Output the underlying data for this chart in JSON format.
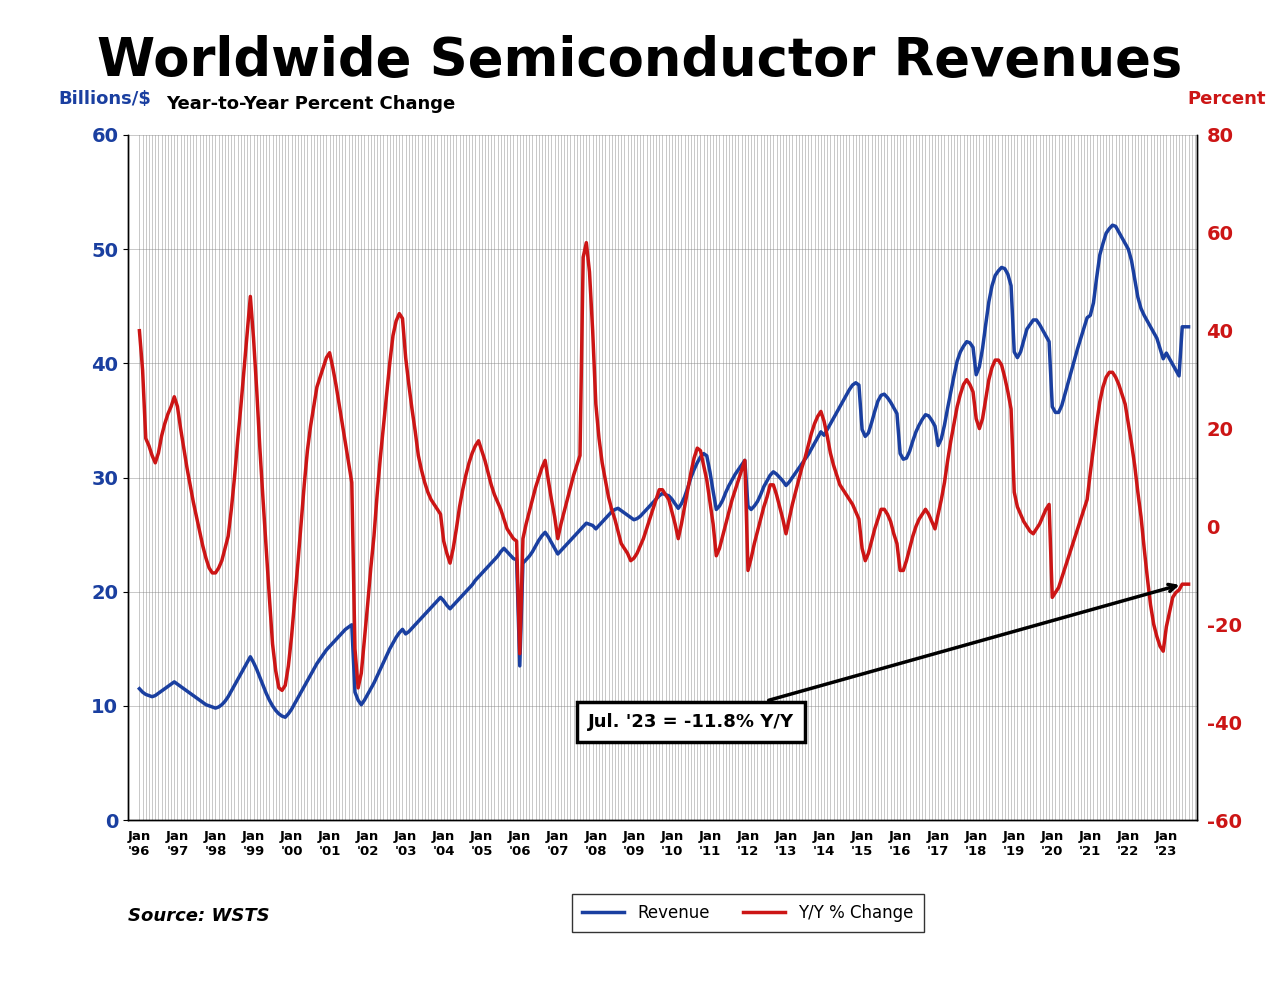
{
  "title": "Worldwide Semiconductor Revenues",
  "subtitle": "Year-to-Year Percent Change",
  "left_label": "Billions/$",
  "right_label": "Percent",
  "source": "Source: WSTS",
  "annotation": "Jul. '23 = -11.8% Y/Y",
  "blue_color": "#1A3FA0",
  "red_color": "#CC1515",
  "left_ylim": [
    0,
    60
  ],
  "right_ylim": [
    -60,
    80
  ],
  "left_yticks": [
    0,
    10,
    20,
    30,
    40,
    50,
    60
  ],
  "right_yticks": [
    -60,
    -40,
    -20,
    0,
    20,
    40,
    60,
    80
  ],
  "start_year": 1996,
  "n_years": 28,
  "title_fontsize": 38,
  "subtitle_fontsize": 13,
  "revenue": [
    11.5,
    11.2,
    11.0,
    10.9,
    10.8,
    10.9,
    11.1,
    11.3,
    11.5,
    11.7,
    11.9,
    12.1,
    11.9,
    11.7,
    11.5,
    11.3,
    11.1,
    10.9,
    10.7,
    10.5,
    10.3,
    10.1,
    10.0,
    9.9,
    9.8,
    9.9,
    10.1,
    10.4,
    10.8,
    11.3,
    11.8,
    12.3,
    12.8,
    13.3,
    13.8,
    14.3,
    13.8,
    13.2,
    12.5,
    11.8,
    11.1,
    10.5,
    10.0,
    9.6,
    9.3,
    9.1,
    9.0,
    9.3,
    9.7,
    10.2,
    10.7,
    11.2,
    11.7,
    12.2,
    12.7,
    13.2,
    13.7,
    14.1,
    14.5,
    14.9,
    15.2,
    15.5,
    15.8,
    16.1,
    16.4,
    16.7,
    16.9,
    17.1,
    11.2,
    10.5,
    10.1,
    10.5,
    11.0,
    11.5,
    12.0,
    12.6,
    13.2,
    13.8,
    14.4,
    15.0,
    15.5,
    16.0,
    16.4,
    16.7,
    16.3,
    16.5,
    16.8,
    17.1,
    17.4,
    17.7,
    18.0,
    18.3,
    18.6,
    18.9,
    19.2,
    19.5,
    19.2,
    18.8,
    18.5,
    18.8,
    19.1,
    19.4,
    19.7,
    20.0,
    20.3,
    20.6,
    21.0,
    21.3,
    21.6,
    21.9,
    22.2,
    22.5,
    22.8,
    23.1,
    23.5,
    23.8,
    23.5,
    23.2,
    22.9,
    22.8,
    13.5,
    22.5,
    22.8,
    23.1,
    23.5,
    24.0,
    24.5,
    24.9,
    25.2,
    24.8,
    24.3,
    23.8,
    23.3,
    23.6,
    23.9,
    24.2,
    24.5,
    24.8,
    25.1,
    25.4,
    25.7,
    26.0,
    25.9,
    25.8,
    25.5,
    25.8,
    26.1,
    26.4,
    26.7,
    27.0,
    27.2,
    27.3,
    27.1,
    26.9,
    26.7,
    26.5,
    26.3,
    26.4,
    26.6,
    26.9,
    27.2,
    27.5,
    27.8,
    28.1,
    28.4,
    28.6,
    28.5,
    28.4,
    28.1,
    27.7,
    27.3,
    27.7,
    28.3,
    29.1,
    30.0,
    30.7,
    31.3,
    31.8,
    32.1,
    31.9,
    30.5,
    28.8,
    27.2,
    27.5,
    28.0,
    28.7,
    29.3,
    29.8,
    30.3,
    30.7,
    31.1,
    31.5,
    27.5,
    27.2,
    27.5,
    27.9,
    28.5,
    29.2,
    29.7,
    30.2,
    30.5,
    30.3,
    30.0,
    29.7,
    29.3,
    29.6,
    30.0,
    30.4,
    30.8,
    31.2,
    31.6,
    32.0,
    32.5,
    33.0,
    33.5,
    34.0,
    33.7,
    34.2,
    34.7,
    35.2,
    35.7,
    36.2,
    36.7,
    37.2,
    37.7,
    38.1,
    38.3,
    38.1,
    34.2,
    33.6,
    33.9,
    34.8,
    35.8,
    36.7,
    37.2,
    37.3,
    37.0,
    36.6,
    36.1,
    35.6,
    32.1,
    31.6,
    31.7,
    32.3,
    33.2,
    34.0,
    34.6,
    35.1,
    35.5,
    35.4,
    35.0,
    34.5,
    32.8,
    33.4,
    34.6,
    36.1,
    37.5,
    38.9,
    40.2,
    41.0,
    41.5,
    41.9,
    41.8,
    41.4,
    39.0,
    39.7,
    41.3,
    43.4,
    45.4,
    46.8,
    47.7,
    48.1,
    48.4,
    48.3,
    47.8,
    46.8,
    41.0,
    40.5,
    41.0,
    42.0,
    43.0,
    43.4,
    43.8,
    43.8,
    43.4,
    42.9,
    42.4,
    41.9,
    36.2,
    35.7,
    35.7,
    36.3,
    37.3,
    38.3,
    39.3,
    40.3,
    41.3,
    42.2,
    43.1,
    44.0,
    44.2,
    45.3,
    47.5,
    49.5,
    50.5,
    51.4,
    51.8,
    52.1,
    52.0,
    51.5,
    51.0,
    50.5,
    50.0,
    49.0,
    47.4,
    45.8,
    44.8,
    44.2,
    43.7,
    43.2,
    42.7,
    42.2,
    41.3,
    40.4,
    40.9,
    40.4,
    39.9,
    39.4,
    38.9,
    43.2,
    43.2,
    43.2
  ],
  "yoy": [
    40.0,
    32.0,
    18.0,
    16.5,
    14.5,
    13.0,
    15.0,
    18.5,
    21.0,
    23.0,
    24.5,
    26.5,
    24.5,
    20.0,
    16.0,
    12.0,
    8.5,
    5.0,
    2.0,
    -1.0,
    -4.0,
    -6.5,
    -8.5,
    -9.5,
    -9.5,
    -8.5,
    -7.0,
    -4.5,
    -2.0,
    3.5,
    10.0,
    17.5,
    24.5,
    32.0,
    39.5,
    47.0,
    38.5,
    28.0,
    16.0,
    5.5,
    -4.5,
    -14.5,
    -24.0,
    -29.5,
    -33.0,
    -33.5,
    -32.5,
    -28.5,
    -22.5,
    -15.0,
    -7.5,
    0.5,
    8.5,
    15.5,
    20.5,
    24.5,
    28.5,
    30.5,
    32.5,
    34.5,
    35.5,
    32.5,
    29.0,
    25.0,
    21.0,
    17.0,
    13.0,
    9.0,
    -25.0,
    -33.0,
    -30.0,
    -23.0,
    -16.0,
    -8.5,
    -2.0,
    6.5,
    14.0,
    20.5,
    27.0,
    33.5,
    39.0,
    42.0,
    43.5,
    42.5,
    34.5,
    29.0,
    24.0,
    19.5,
    14.5,
    11.5,
    9.0,
    7.0,
    5.5,
    4.5,
    3.5,
    2.5,
    -3.0,
    -5.5,
    -7.5,
    -4.5,
    -0.5,
    4.0,
    7.5,
    10.5,
    13.0,
    15.0,
    16.5,
    17.5,
    15.5,
    13.5,
    11.0,
    8.5,
    6.5,
    5.0,
    3.5,
    1.5,
    -0.5,
    -1.5,
    -2.5,
    -3.0,
    -26.0,
    -2.5,
    0.5,
    3.0,
    5.5,
    8.0,
    10.0,
    12.0,
    13.5,
    9.5,
    5.5,
    2.0,
    -2.5,
    0.5,
    3.0,
    5.5,
    8.0,
    10.5,
    12.5,
    14.5,
    55.0,
    58.0,
    52.0,
    40.0,
    25.0,
    18.0,
    13.0,
    9.5,
    6.0,
    3.5,
    1.5,
    -1.0,
    -3.5,
    -4.5,
    -5.5,
    -7.0,
    -6.5,
    -5.5,
    -4.0,
    -2.5,
    -0.5,
    1.5,
    3.5,
    5.5,
    7.5,
    7.5,
    6.5,
    5.5,
    3.0,
    0.5,
    -2.5,
    0.5,
    4.0,
    7.5,
    11.0,
    14.0,
    16.0,
    15.5,
    12.5,
    9.5,
    5.0,
    0.5,
    -6.0,
    -4.5,
    -2.0,
    0.5,
    3.0,
    5.5,
    7.5,
    9.5,
    11.5,
    13.5,
    -9.0,
    -6.5,
    -3.5,
    -1.0,
    1.5,
    4.0,
    6.0,
    8.5,
    8.5,
    6.5,
    4.0,
    1.5,
    -1.5,
    1.5,
    4.5,
    7.0,
    9.5,
    12.0,
    14.0,
    16.5,
    19.0,
    21.0,
    22.5,
    23.5,
    21.5,
    18.5,
    15.0,
    12.5,
    10.5,
    8.5,
    7.5,
    6.5,
    5.5,
    4.5,
    3.0,
    1.5,
    -4.5,
    -7.0,
    -5.5,
    -3.0,
    -0.5,
    1.5,
    3.5,
    3.5,
    2.5,
    1.0,
    -1.5,
    -3.5,
    -9.0,
    -9.0,
    -7.0,
    -4.5,
    -2.0,
    0.0,
    1.5,
    2.5,
    3.5,
    2.5,
    1.0,
    -0.5,
    2.5,
    5.5,
    9.0,
    13.5,
    17.5,
    21.0,
    24.5,
    27.0,
    29.0,
    30.0,
    29.0,
    27.5,
    22.0,
    20.0,
    22.0,
    26.0,
    30.0,
    32.5,
    34.0,
    34.0,
    33.0,
    30.5,
    27.5,
    24.0,
    7.0,
    4.0,
    2.5,
    1.0,
    0.0,
    -1.0,
    -1.5,
    -0.5,
    0.5,
    2.0,
    3.5,
    4.5,
    -14.5,
    -13.5,
    -12.5,
    -10.5,
    -8.5,
    -6.5,
    -4.5,
    -2.5,
    -0.5,
    1.5,
    3.5,
    5.5,
    11.0,
    16.0,
    21.0,
    25.5,
    28.5,
    30.5,
    31.5,
    31.5,
    30.5,
    29.0,
    27.0,
    25.0,
    21.0,
    17.0,
    12.5,
    7.0,
    2.0,
    -4.5,
    -10.5,
    -16.0,
    -20.0,
    -22.5,
    -24.5,
    -25.5,
    -20.5,
    -17.5,
    -14.5,
    -13.5,
    -13.0,
    -11.8,
    -11.8,
    -11.8
  ]
}
